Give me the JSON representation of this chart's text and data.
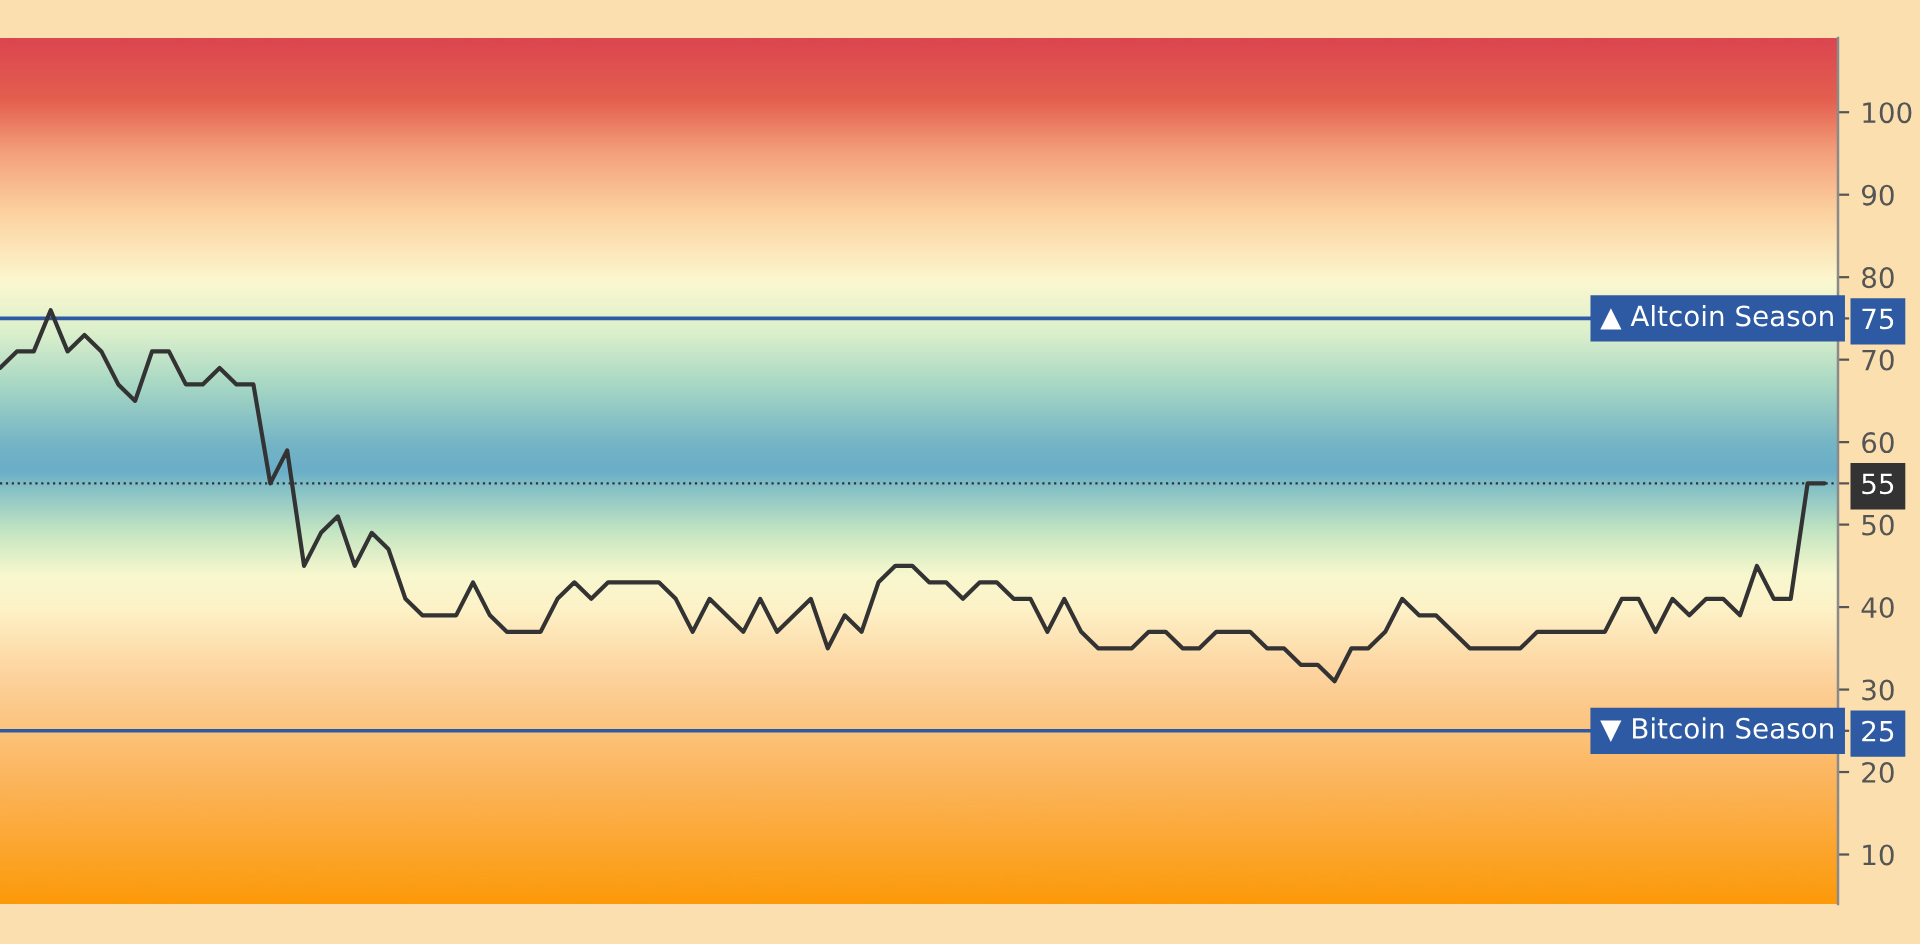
{
  "chart_data": {
    "type": "line",
    "categories": [
      null,
      null,
      null,
      null,
      null,
      null,
      null,
      null,
      null,
      null,
      null,
      null,
      null,
      null,
      null,
      null,
      null,
      null,
      null,
      null,
      null,
      null,
      null,
      null,
      null,
      null,
      null,
      null,
      null,
      null,
      null,
      null,
      null,
      null,
      null,
      null,
      null,
      null,
      null,
      null,
      null,
      null,
      null,
      null,
      null,
      null,
      null,
      null,
      null,
      null,
      null,
      null,
      null,
      null,
      null,
      null,
      null,
      null,
      null,
      null,
      null,
      null,
      null,
      null,
      null,
      null,
      null,
      null,
      null,
      null,
      null,
      null,
      null,
      null,
      null,
      null,
      null,
      null,
      null,
      null,
      null,
      null,
      null,
      null,
      null,
      null,
      null,
      null,
      null,
      null,
      null,
      null,
      null,
      null,
      null,
      null,
      null,
      null,
      null,
      null,
      null,
      null,
      null,
      null,
      null,
      null,
      null,
      null,
      null
    ],
    "series": [
      {
        "color": "#333333",
        "values": [
          69,
          71,
          71,
          76,
          71,
          73,
          71,
          67,
          65,
          71,
          71,
          67,
          67,
          69,
          67,
          67,
          55,
          59,
          45,
          49,
          51,
          45,
          49,
          47,
          41,
          39,
          39,
          39,
          43,
          39,
          37,
          37,
          37,
          41,
          43,
          41,
          43,
          43,
          43,
          43,
          41,
          37,
          41,
          39,
          37,
          41,
          37,
          39,
          41,
          35,
          39,
          37,
          43,
          45,
          45,
          43,
          43,
          41,
          43,
          43,
          41,
          41,
          37,
          41,
          37,
          35,
          35,
          35,
          37,
          37,
          35,
          35,
          37,
          37,
          37,
          35,
          35,
          33,
          33,
          31,
          35,
          35,
          37,
          41,
          39,
          39,
          37,
          35,
          35,
          35,
          35,
          37,
          37,
          37,
          37,
          37,
          41,
          41,
          37,
          41,
          39,
          41,
          41,
          39,
          45,
          41,
          41,
          55,
          55
        ]
      }
    ],
    "ylim": [
      4,
      109
    ],
    "yticks": [
      10,
      20,
      25,
      30,
      40,
      50,
      55,
      60,
      70,
      75,
      80,
      90,
      100
    ],
    "ref_lines": [
      {
        "axis": "y",
        "value": 75,
        "label": "▲ Altcoin Season",
        "color": "#2e5aa3"
      },
      {
        "axis": "y",
        "value": 25,
        "label": "▼ Bitcoin Season",
        "color": "#2e5aa3"
      },
      {
        "axis": "y",
        "value": 55,
        "color": "#333333",
        "line_style": "dotted"
      }
    ],
    "line_style": "solid",
    "tick_labels": "y"
  }
}
